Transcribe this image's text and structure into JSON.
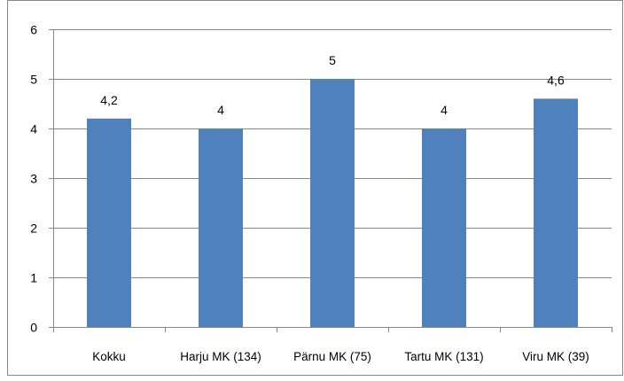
{
  "chart_data": {
    "type": "bar",
    "categories": [
      "Kokku",
      "Harju MK (134)",
      "Pärnu MK (75)",
      "Tartu MK (131)",
      "Viru MK (39)"
    ],
    "values": [
      4.2,
      4,
      5,
      4,
      4.6
    ],
    "data_labels": [
      "4,2",
      "4",
      "5",
      "4",
      "4,6"
    ],
    "title": "",
    "xlabel": "",
    "ylabel": "",
    "ylim": [
      0,
      6
    ],
    "yticks": [
      0,
      1,
      2,
      3,
      4,
      5,
      6
    ],
    "grid": true,
    "legend": "none",
    "bar_color": "#4f81bd",
    "grid_color": "#878787",
    "axis_color": "#878787",
    "border_color": "#878787"
  }
}
